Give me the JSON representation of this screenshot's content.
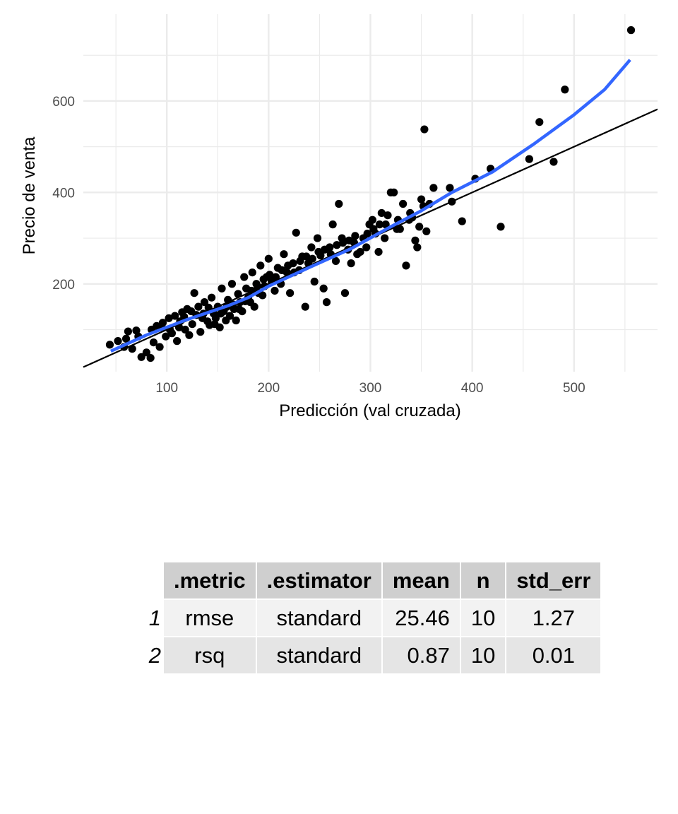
{
  "chart_data": {
    "type": "scatter",
    "xlabel": "Predicción (val cruzada)",
    "ylabel": "Precio de venta",
    "xlim": [
      18,
      582
    ],
    "ylim": [
      8,
      790
    ],
    "x_ticks": [
      100,
      200,
      300,
      400,
      500
    ],
    "y_ticks": [
      200,
      400,
      600
    ],
    "grid": true,
    "colors": {
      "points": "#000000",
      "smooth": "#3366ff",
      "identity": "#000000",
      "grid": "#ebebeb"
    },
    "identity_line": {
      "slope": 1,
      "intercept": 0
    },
    "smooth_curve": {
      "x": [
        45,
        80,
        120,
        160,
        180,
        200,
        240,
        280,
        320,
        350,
        380,
        420,
        460,
        500,
        530,
        555
      ],
      "y": [
        53,
        88,
        122,
        152,
        170,
        195,
        236,
        276,
        325,
        360,
        400,
        445,
        505,
        570,
        625,
        690
      ]
    },
    "series": [
      {
        "values": [
          [
            44,
            67
          ],
          [
            52,
            75
          ],
          [
            58,
            62
          ],
          [
            62,
            96
          ],
          [
            66,
            58
          ],
          [
            70,
            98
          ],
          [
            75,
            40
          ],
          [
            80,
            50
          ],
          [
            84,
            38
          ],
          [
            87,
            72
          ],
          [
            90,
            108
          ],
          [
            93,
            62
          ],
          [
            96,
            115
          ],
          [
            99,
            85
          ],
          [
            102,
            125
          ],
          [
            105,
            92
          ],
          [
            108,
            130
          ],
          [
            110,
            75
          ],
          [
            113,
            118
          ],
          [
            115,
            138
          ],
          [
            118,
            100
          ],
          [
            120,
            145
          ],
          [
            122,
            88
          ],
          [
            125,
            112
          ],
          [
            127,
            180
          ],
          [
            129,
            132
          ],
          [
            131,
            150
          ],
          [
            133,
            95
          ],
          [
            135,
            125
          ],
          [
            137,
            160
          ],
          [
            140,
            118
          ],
          [
            142,
            110
          ],
          [
            144,
            170
          ],
          [
            146,
            135
          ],
          [
            148,
            125
          ],
          [
            150,
            150
          ],
          [
            152,
            105
          ],
          [
            154,
            190
          ],
          [
            156,
            140
          ],
          [
            158,
            120
          ],
          [
            160,
            165
          ],
          [
            162,
            130
          ],
          [
            164,
            200
          ],
          [
            166,
            145
          ],
          [
            168,
            120
          ],
          [
            170,
            178
          ],
          [
            172,
            160
          ],
          [
            174,
            140
          ],
          [
            176,
            215
          ],
          [
            178,
            190
          ],
          [
            180,
            170
          ],
          [
            182,
            160
          ],
          [
            184,
            225
          ],
          [
            186,
            150
          ],
          [
            188,
            200
          ],
          [
            190,
            180
          ],
          [
            192,
            240
          ],
          [
            194,
            175
          ],
          [
            196,
            195
          ],
          [
            198,
            215
          ],
          [
            200,
            255
          ],
          [
            203,
            205
          ],
          [
            206,
            185
          ],
          [
            209,
            235
          ],
          [
            212,
            200
          ],
          [
            215,
            265
          ],
          [
            218,
            225
          ],
          [
            221,
            180
          ],
          [
            224,
            245
          ],
          [
            227,
            312
          ],
          [
            230,
            230
          ],
          [
            233,
            260
          ],
          [
            236,
            150
          ],
          [
            239,
            245
          ],
          [
            242,
            280
          ],
          [
            245,
            205
          ],
          [
            248,
            300
          ],
          [
            251,
            262
          ],
          [
            254,
            190
          ],
          [
            257,
            160
          ],
          [
            260,
            280
          ],
          [
            263,
            330
          ],
          [
            266,
            250
          ],
          [
            269,
            375
          ],
          [
            272,
            300
          ],
          [
            275,
            180
          ],
          [
            278,
            275
          ],
          [
            281,
            245
          ],
          [
            284,
            290
          ],
          [
            287,
            265
          ],
          [
            290,
            270
          ],
          [
            293,
            300
          ],
          [
            296,
            280
          ],
          [
            299,
            330
          ],
          [
            302,
            340
          ],
          [
            305,
            310
          ],
          [
            308,
            270
          ],
          [
            311,
            355
          ],
          [
            314,
            300
          ],
          [
            317,
            350
          ],
          [
            320,
            400
          ],
          [
            323,
            400
          ],
          [
            326,
            320
          ],
          [
            329,
            320
          ],
          [
            332,
            375
          ],
          [
            335,
            240
          ],
          [
            338,
            340
          ],
          [
            341,
            345
          ],
          [
            344,
            295
          ],
          [
            346,
            280
          ],
          [
            348,
            325
          ],
          [
            350,
            385
          ],
          [
            352,
            370
          ],
          [
            353,
            538
          ],
          [
            355,
            315
          ],
          [
            358,
            375
          ],
          [
            362,
            410
          ],
          [
            378,
            410
          ],
          [
            380,
            380
          ],
          [
            390,
            337
          ],
          [
            403,
            430
          ],
          [
            418,
            452
          ],
          [
            428,
            325
          ],
          [
            456,
            473
          ],
          [
            466,
            554
          ],
          [
            480,
            467
          ],
          [
            491,
            625
          ],
          [
            556,
            755
          ],
          [
            60,
            80
          ],
          [
            72,
            85
          ],
          [
            85,
            100
          ],
          [
            95,
            105
          ],
          [
            103,
            100
          ],
          [
            112,
            105
          ],
          [
            117,
            128
          ],
          [
            124,
            140
          ],
          [
            136,
            135
          ],
          [
            141,
            148
          ],
          [
            147,
            112
          ],
          [
            153,
            135
          ],
          [
            159,
            150
          ],
          [
            165,
            155
          ],
          [
            171,
            145
          ],
          [
            177,
            162
          ],
          [
            183,
            185
          ],
          [
            189,
            195
          ],
          [
            195,
            210
          ],
          [
            201,
            220
          ],
          [
            207,
            215
          ],
          [
            213,
            230
          ],
          [
            219,
            240
          ],
          [
            225,
            225
          ],
          [
            231,
            250
          ],
          [
            237,
            260
          ],
          [
            243,
            255
          ],
          [
            249,
            270
          ],
          [
            255,
            275
          ],
          [
            261,
            265
          ],
          [
            267,
            285
          ],
          [
            273,
            290
          ],
          [
            279,
            295
          ],
          [
            285,
            305
          ],
          [
            297,
            310
          ],
          [
            303,
            320
          ],
          [
            309,
            330
          ],
          [
            315,
            330
          ],
          [
            327,
            340
          ],
          [
            339,
            355
          ]
        ]
      }
    ]
  },
  "table": {
    "columns": [
      ".metric",
      ".estimator",
      "mean",
      "n",
      "std_err"
    ],
    "rows": [
      {
        "index": "1",
        "metric": "rmse",
        "estimator": "standard",
        "mean": "25.46",
        "n": "10",
        "std_err": "1.27"
      },
      {
        "index": "2",
        "metric": "rsq",
        "estimator": "standard",
        "mean": "0.87",
        "n": "10",
        "std_err": "0.01"
      }
    ]
  }
}
